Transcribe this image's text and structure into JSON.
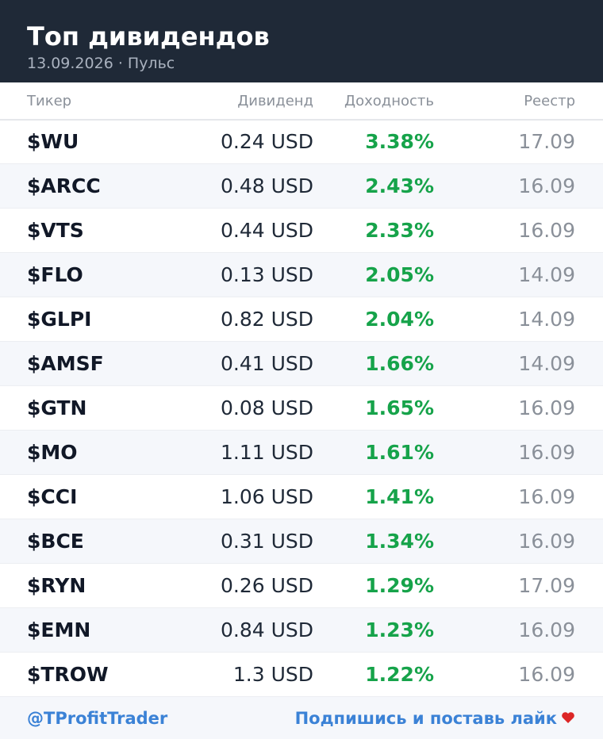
{
  "header": {
    "title": "Топ дивидендов",
    "subtitle": "13.09.2026 · Пульс"
  },
  "table": {
    "columns": [
      "Тикер",
      "Дивиденд",
      "Доходность",
      "Реестр"
    ],
    "rows": [
      [
        "$WU",
        "0.24 USD",
        "3.38%",
        "17.09"
      ],
      [
        "$ARCC",
        "0.48 USD",
        "2.43%",
        "16.09"
      ],
      [
        "$VTS",
        "0.44 USD",
        "2.33%",
        "16.09"
      ],
      [
        "$FLO",
        "0.13 USD",
        "2.05%",
        "14.09"
      ],
      [
        "$GLPI",
        "0.82 USD",
        "2.04%",
        "14.09"
      ],
      [
        "$AMSF",
        "0.41 USD",
        "1.66%",
        "14.09"
      ],
      [
        "$GTN",
        "0.08 USD",
        "1.65%",
        "16.09"
      ],
      [
        "$MO",
        "1.11 USD",
        "1.61%",
        "16.09"
      ],
      [
        "$CCI",
        "1.06 USD",
        "1.41%",
        "16.09"
      ],
      [
        "$BCE",
        "0.31 USD",
        "1.34%",
        "16.09"
      ],
      [
        "$RYN",
        "0.26 USD",
        "1.29%",
        "17.09"
      ],
      [
        "$EMN",
        "0.84 USD",
        "1.23%",
        "16.09"
      ],
      [
        "$TROW",
        "1.3 USD",
        "1.22%",
        "16.09"
      ]
    ]
  },
  "footer": {
    "handle": "@TProfitTrader",
    "cta": "Подпишись и поставь лайк"
  }
}
